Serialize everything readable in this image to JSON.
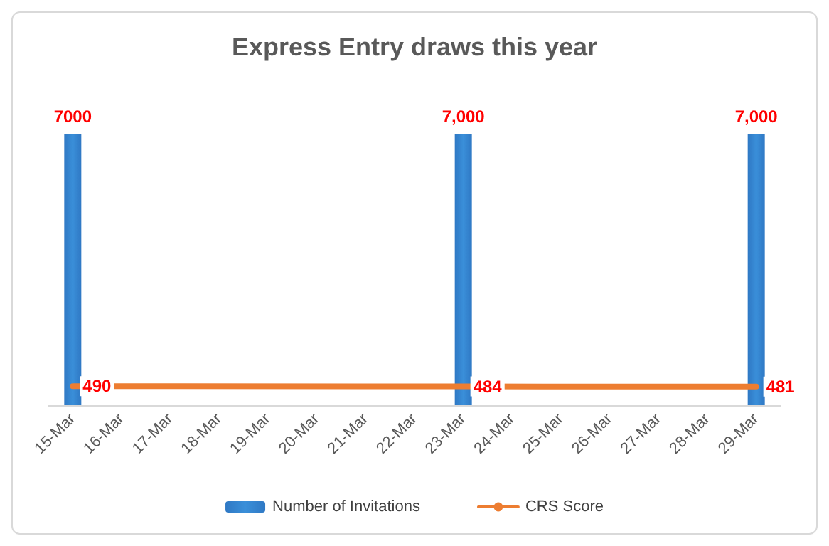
{
  "chart_data": {
    "type": "bar",
    "title": "Express Entry draws this year",
    "categories": [
      "15-Mar",
      "16-Mar",
      "17-Mar",
      "18-Mar",
      "19-Mar",
      "20-Mar",
      "21-Mar",
      "22-Mar",
      "23-Mar",
      "24-Mar",
      "25-Mar",
      "26-Mar",
      "27-Mar",
      "28-Mar",
      "29-Mar"
    ],
    "series": [
      {
        "name": "Number of Invitations",
        "color": "#3a8fd9",
        "values": [
          7000,
          null,
          null,
          null,
          null,
          null,
          null,
          null,
          7000,
          null,
          null,
          null,
          null,
          null,
          7000
        ],
        "value_labels": [
          "7000",
          null,
          null,
          null,
          null,
          null,
          null,
          null,
          "7,000",
          null,
          null,
          null,
          null,
          null,
          "7,000"
        ]
      },
      {
        "name": "CRS Score",
        "type": "line",
        "color": "#ed7d31",
        "values": [
          490,
          null,
          null,
          null,
          null,
          null,
          null,
          null,
          484,
          null,
          null,
          null,
          null,
          null,
          481
        ],
        "value_labels": [
          "490",
          null,
          null,
          null,
          null,
          null,
          null,
          null,
          "484",
          null,
          null,
          null,
          null,
          null,
          "481"
        ]
      }
    ],
    "grid": false,
    "legend": "bottom",
    "marker": "none"
  }
}
